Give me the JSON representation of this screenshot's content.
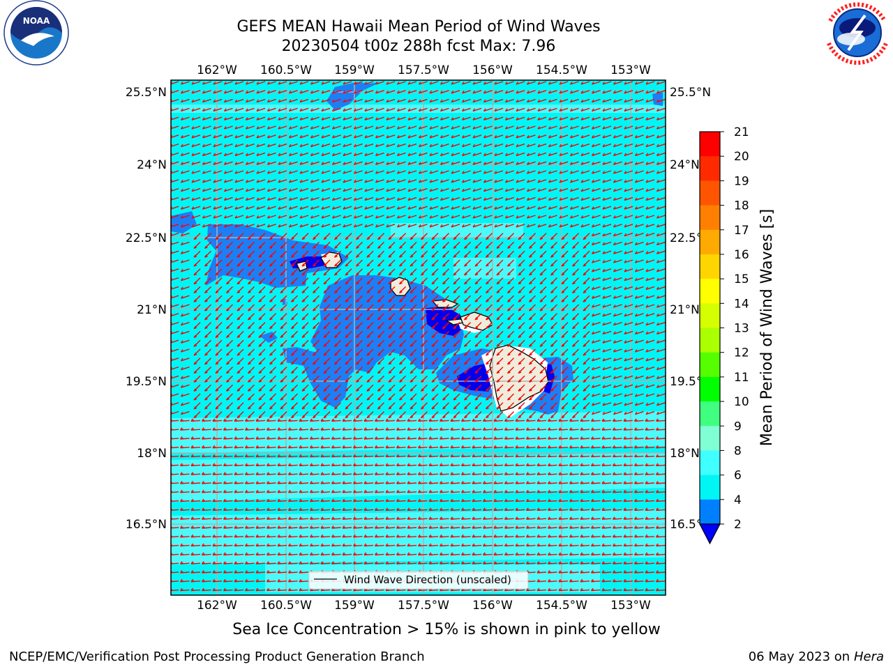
{
  "header": {
    "title_line1": "GEFS MEAN Hawaii Mean Period of Wind Waves",
    "title_line2": "20230504 t00z 288h fcst   Max: 7.96"
  },
  "logos": {
    "left": {
      "name": "NOAA",
      "ring_text": "NATIONAL OCEANIC AND ATMOSPHERIC ADMINISTRATION · U.S. DEPARTMENT OF COMMERCE"
    },
    "right": {
      "ring_text": "NATIONAL WEATHER SERVICE"
    }
  },
  "map": {
    "lon_ticks": [
      "162°W",
      "160.5°W",
      "159°W",
      "157.5°W",
      "156°W",
      "154.5°W",
      "153°W"
    ],
    "lat_ticks": [
      "25.5°N",
      "24°N",
      "22.5°N",
      "21°N",
      "19.5°N",
      "18°N",
      "16.5°N"
    ],
    "legend_label": "Wind Wave Direction (unscaled)",
    "ocean_color": "#00f5f5",
    "arrow_color": "#ff0000"
  },
  "colorbar": {
    "label": "Mean Period of Wind Waves [s]",
    "ticks": [
      "21",
      "20",
      "19",
      "18",
      "17",
      "16",
      "15",
      "14",
      "13",
      "12",
      "11",
      "10",
      "9",
      "8",
      "6",
      "4",
      "2"
    ],
    "colors": [
      "#ff0000",
      "#ff2a00",
      "#ff5500",
      "#ff8000",
      "#ffaa00",
      "#ffd500",
      "#ffff00",
      "#d5ff00",
      "#aaff00",
      "#55ff00",
      "#00ff00",
      "#40ff80",
      "#80ffd5",
      "#40ffff",
      "#00f5f5",
      "#0080ff",
      "#0000ff"
    ]
  },
  "footer": {
    "note": "Sea Ice Concentration > 15% is shown in pink to yellow",
    "credit": "NCEP/EMC/Verification Post Processing Product Generation Branch",
    "date": "06 May 2023 on",
    "machine": "Hera"
  }
}
